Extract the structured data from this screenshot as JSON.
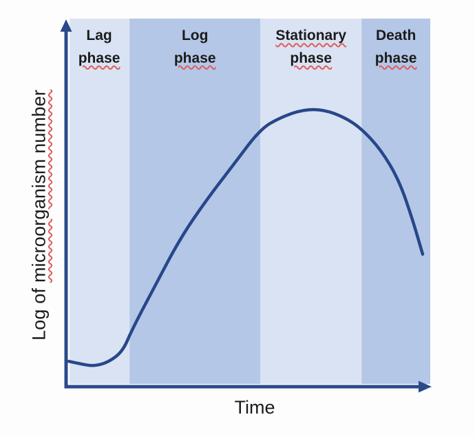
{
  "background_color": "#fdfdfd",
  "text_color": "#1b1b1b",
  "spellcheck_underline_color": "#e05c5c",
  "axis": {
    "color": "#2a4b8a",
    "y_label_plain": "Log of ",
    "y_label_misspelled_part": "microorganism number"
  },
  "chart_data": {
    "type": "line",
    "title": "",
    "xlabel": "Time",
    "ylabel": "Log of microorganism number",
    "legend": "none",
    "grid": "off",
    "axis_ticks": "none (qualitative sketch)",
    "band_colors": {
      "light": "#dae3f3",
      "dark": "#b4c7e7"
    },
    "phases": [
      {
        "label_line1": "Lag",
        "label_line2": "phase",
        "line1_misspelled": false,
        "t_start": 0.0,
        "t_end": 0.168,
        "band_color": "#dae3f3"
      },
      {
        "label_line1": "Log",
        "label_line2": "phase",
        "line1_misspelled": false,
        "t_start": 0.168,
        "t_end": 0.53,
        "band_color": "#b4c7e7"
      },
      {
        "label_line1": "Stationary",
        "label_line2": "phase",
        "line1_misspelled": true,
        "t_start": 0.53,
        "t_end": 0.81,
        "band_color": "#dae3f3"
      },
      {
        "label_line1": "Death",
        "label_line2": "phase",
        "line1_misspelled": false,
        "t_start": 0.81,
        "t_end": 1.0,
        "band_color": "#b4c7e7"
      }
    ],
    "curve": {
      "name": "microbial growth curve",
      "color": "#274789",
      "x_range_norm": [
        0,
        1
      ],
      "y_range_norm": [
        0,
        1
      ],
      "points_t_v": [
        [
          0.0,
          0.062
        ],
        [
          0.04,
          0.053
        ],
        [
          0.072,
          0.049
        ],
        [
          0.11,
          0.06
        ],
        [
          0.149,
          0.089
        ],
        [
          0.175,
          0.149
        ],
        [
          0.238,
          0.268
        ],
        [
          0.309,
          0.4
        ],
        [
          0.381,
          0.504
        ],
        [
          0.457,
          0.602
        ],
        [
          0.53,
          0.698
        ],
        [
          0.587,
          0.73
        ],
        [
          0.648,
          0.751
        ],
        [
          0.705,
          0.751
        ],
        [
          0.762,
          0.73
        ],
        [
          0.808,
          0.7
        ],
        [
          0.863,
          0.642
        ],
        [
          0.914,
          0.557
        ],
        [
          0.952,
          0.447
        ],
        [
          0.979,
          0.355
        ]
      ]
    }
  }
}
